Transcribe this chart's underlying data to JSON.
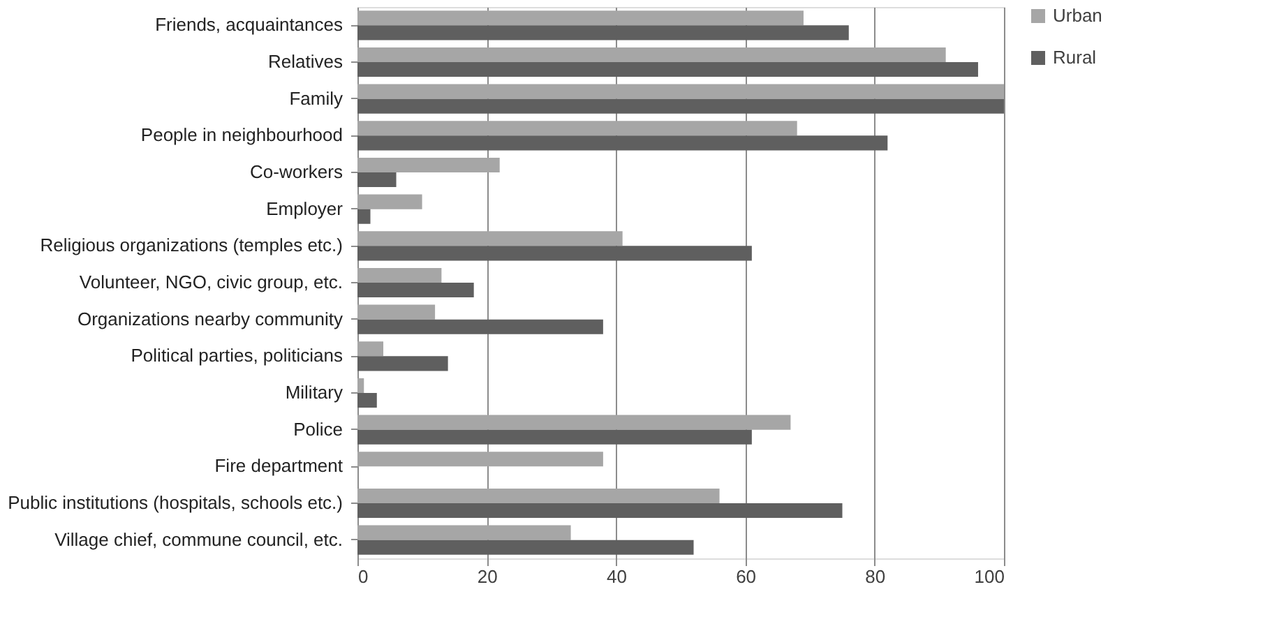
{
  "chart_data": {
    "type": "bar",
    "orientation": "horizontal",
    "categories": [
      "Friends, acquaintances",
      "Relatives",
      "Family",
      "People in neighbourhood",
      "Co-workers",
      "Employer",
      "Religious organizations (temples etc.)",
      "Volunteer, NGO, civic group, etc.",
      "Organizations nearby community",
      "Political parties, politicians",
      "Military",
      "Police",
      "Fire department",
      "Public institutions (hospitals, schools etc.)",
      "Village chief, commune council, etc."
    ],
    "series": [
      {
        "name": "Urban",
        "color": "#a6a6a6",
        "values": [
          69,
          91,
          100,
          68,
          22,
          10,
          41,
          13,
          12,
          4,
          1,
          67,
          38,
          56,
          33
        ]
      },
      {
        "name": "Rural",
        "color": "#5f5f5f",
        "values": [
          76,
          96,
          100,
          82,
          6,
          2,
          61,
          18,
          38,
          14,
          3,
          61,
          0,
          75,
          52
        ]
      }
    ],
    "xlim": [
      0,
      100
    ],
    "xticks": [
      0,
      20,
      40,
      60,
      80,
      100
    ],
    "grid": "x",
    "legend": "right"
  }
}
